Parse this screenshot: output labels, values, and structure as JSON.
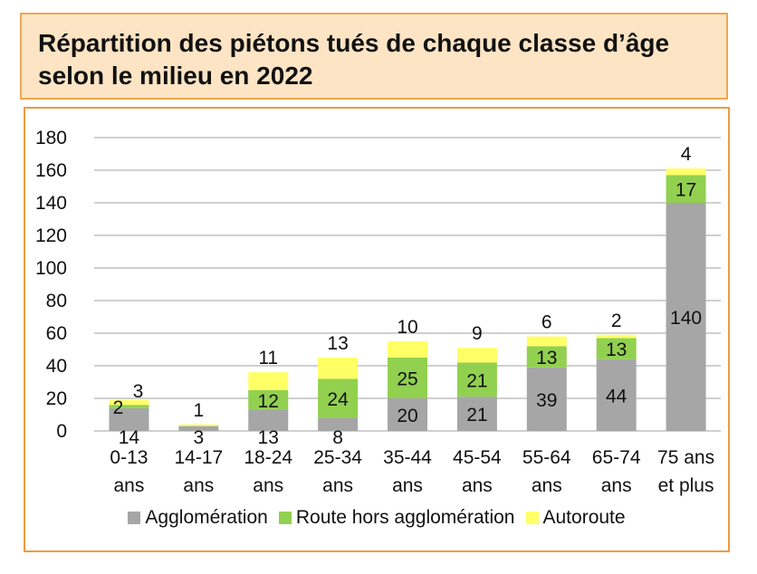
{
  "title": "Répartition des piétons tués de chaque classe d’âge selon le milieu en 2022",
  "chart_data": {
    "type": "bar",
    "stacked": true,
    "categories": [
      [
        "0-13",
        "ans"
      ],
      [
        "14-17",
        "ans"
      ],
      [
        "18-24",
        "ans"
      ],
      [
        "25-34",
        "ans"
      ],
      [
        "35-44",
        "ans"
      ],
      [
        "45-54",
        "ans"
      ],
      [
        "55-64",
        "ans"
      ],
      [
        "65-74",
        "ans"
      ],
      [
        "75 ans",
        "et plus"
      ]
    ],
    "series": [
      {
        "name": "Agglomération",
        "color": "#a6a6a6",
        "values": [
          14,
          3,
          13,
          8,
          20,
          21,
          39,
          44,
          140
        ]
      },
      {
        "name": "Route hors agglomération",
        "color": "#92d050",
        "values": [
          2,
          0,
          12,
          24,
          25,
          21,
          13,
          13,
          17
        ]
      },
      {
        "name": "Autoroute",
        "color": "#ffff66",
        "values": [
          3,
          1,
          11,
          13,
          10,
          9,
          6,
          2,
          4
        ]
      }
    ],
    "ylim": [
      0,
      180
    ],
    "yticks": [
      0,
      20,
      40,
      60,
      80,
      100,
      120,
      140,
      160,
      180
    ],
    "grid": true,
    "legend_position": "bottom"
  }
}
